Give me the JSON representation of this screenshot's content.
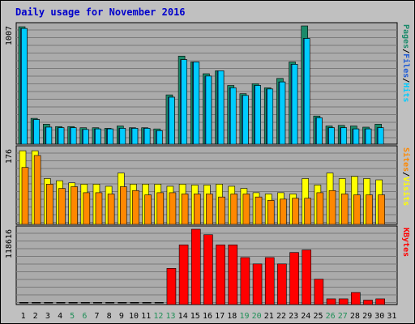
{
  "title": "Daily usage for November 2016",
  "colors": {
    "pages": "#1a8a6a",
    "files": "#1f5bd6",
    "hits": "#00ccff",
    "visits": "#ffff00",
    "sites": "#ff8800",
    "kbytes": "#ff0000",
    "weekend": "#1f8f57",
    "weekday": "#000000",
    "title": "#0000cc",
    "panel_bg": "#ababab"
  },
  "panels": {
    "top": {
      "max_label": "1007",
      "legend": [
        {
          "text": "Pages",
          "color": "#1a8a6a"
        },
        {
          "text": "/",
          "color": "#000000"
        },
        {
          "text": "Files",
          "color": "#1f5bd6"
        },
        {
          "text": "/",
          "color": "#000000"
        },
        {
          "text": "Hits",
          "color": "#00ccff"
        }
      ]
    },
    "middle": {
      "max_label": "176",
      "legend": [
        {
          "text": "Sites",
          "color": "#ff8800"
        },
        {
          "text": "/",
          "color": "#000000"
        },
        {
          "text": "Visits",
          "color": "#ffff00"
        }
      ]
    },
    "bottom": {
      "max_label": "118616",
      "legend": [
        {
          "text": "KBytes",
          "color": "#ff0000"
        }
      ]
    }
  },
  "chart_data": {
    "type": "bar",
    "title": "Daily usage for November 2016",
    "categories": [
      "1",
      "2",
      "3",
      "4",
      "5",
      "6",
      "7",
      "8",
      "9",
      "10",
      "11",
      "12",
      "13",
      "14",
      "15",
      "16",
      "17",
      "18",
      "19",
      "20",
      "21",
      "22",
      "23",
      "24",
      "25",
      "26",
      "27",
      "28",
      "29",
      "30",
      "31"
    ],
    "weekend_days": [
      "5",
      "6",
      "12",
      "13",
      "19",
      "20",
      "26",
      "27"
    ],
    "top": {
      "ymax": 1007,
      "series": [
        {
          "name": "Pages",
          "values": [
            1000,
            220,
            170,
            150,
            150,
            140,
            140,
            135,
            155,
            140,
            140,
            130,
            420,
            750,
            700,
            600,
            625,
            500,
            430,
            515,
            480,
            560,
            700,
            1007,
            240,
            155,
            160,
            155,
            145,
            170,
            null
          ]
        },
        {
          "name": "Files",
          "values": [
            945,
            190,
            130,
            115,
            115,
            110,
            105,
            110,
            120,
            115,
            115,
            105,
            390,
            580,
            520,
            460,
            480,
            370,
            350,
            390,
            360,
            425,
            500,
            450,
            210,
            135,
            130,
            130,
            120,
            130,
            null
          ]
        },
        {
          "name": "Hits",
          "values": [
            985,
            210,
            145,
            140,
            140,
            125,
            130,
            130,
            135,
            135,
            135,
            115,
            400,
            720,
            700,
            580,
            625,
            480,
            415,
            500,
            470,
            530,
            680,
            900,
            225,
            140,
            140,
            130,
            130,
            140,
            null
          ]
        }
      ]
    },
    "middle": {
      "ymax": 176,
      "series": [
        {
          "name": "Sites",
          "values": [
            133,
            161,
            94,
            84,
            88,
            74,
            74,
            71,
            88,
            79,
            69,
            74,
            74,
            71,
            71,
            71,
            64,
            71,
            71,
            64,
            56,
            59,
            61,
            61,
            74,
            79,
            71,
            69,
            69,
            69,
            null
          ]
        },
        {
          "name": "Visits",
          "values": [
            172,
            172,
            107,
            102,
            97,
            94,
            94,
            89,
            120,
            94,
            94,
            94,
            89,
            94,
            92,
            92,
            94,
            89,
            84,
            74,
            71,
            74,
            71,
            107,
            92,
            120,
            107,
            112,
            107,
            104,
            null
          ]
        }
      ]
    },
    "bottom": {
      "ymax": 118616,
      "series": [
        {
          "name": "KBytes",
          "values": [
            0,
            0,
            0,
            0,
            0,
            0,
            0,
            0,
            0,
            0,
            0,
            0,
            57000,
            94000,
            118616,
            110000,
            94000,
            94000,
            74000,
            64000,
            74000,
            64000,
            82000,
            86000,
            40000,
            9000,
            9000,
            19000,
            7000,
            9000,
            null
          ]
        }
      ]
    }
  }
}
